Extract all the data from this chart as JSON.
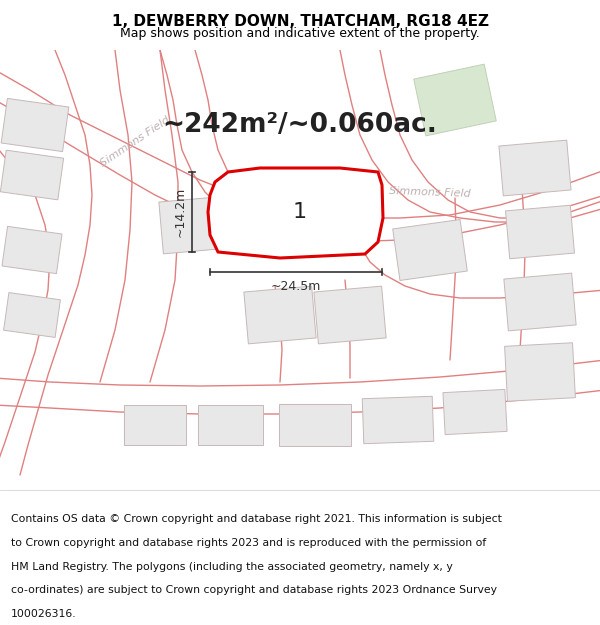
{
  "title": "1, DEWBERRY DOWN, THATCHAM, RG18 4EZ",
  "subtitle": "Map shows position and indicative extent of the property.",
  "area_text": "~242m²/~0.060ac.",
  "label_number": "1",
  "dim_width": "~24.5m",
  "dim_height": "~14.2m",
  "footer_lines": [
    "Contains OS data © Crown copyright and database right 2021. This information is subject",
    "to Crown copyright and database rights 2023 and is reproduced with the permission of",
    "HM Land Registry. The polygons (including the associated geometry, namely x, y",
    "co-ordinates) are subject to Crown copyright and database rights 2023 Ordnance Survey",
    "100026316."
  ],
  "map_bg": "#f7f4f4",
  "road_fill": "#f0e8e8",
  "road_line": "#e08080",
  "building_fill": "#e8e8e8",
  "building_edge": "#c8b8b8",
  "green_fill": "#d8e8d0",
  "green_edge": "#c0d0b8",
  "prop_fill": "#ffffff",
  "prop_edge": "#dd0000",
  "road_label_color": "#c0b0b0",
  "dim_color": "#333333",
  "title_fontsize": 11,
  "subtitle_fontsize": 9,
  "area_fontsize": 19,
  "label_fontsize": 16,
  "dim_fontsize": 9,
  "road_label_fontsize": 8,
  "footer_fontsize": 7.8
}
